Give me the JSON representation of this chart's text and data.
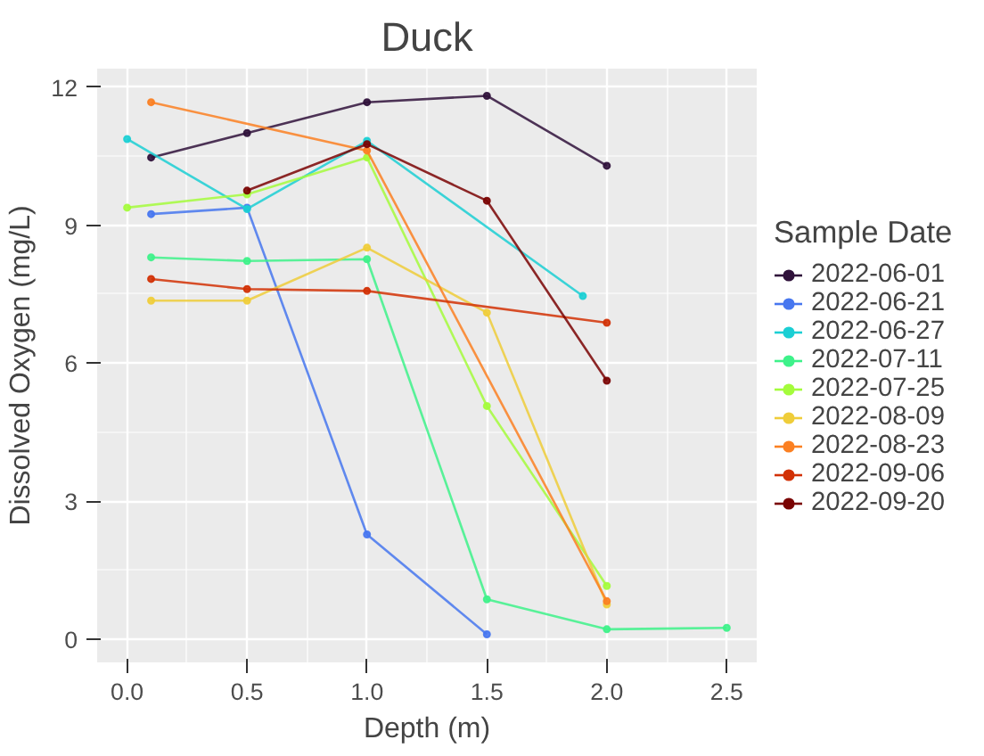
{
  "chart_data": {
    "type": "line",
    "title": "Duck",
    "xlabel": "Depth (m)",
    "ylabel": "Dissolved Oxygen (mg/L)",
    "legend_title": "Sample Date",
    "xlim": [
      -0.125,
      2.625
    ],
    "xticks": [
      {
        "value": 0,
        "label": "0.0"
      },
      0.5,
      {
        "value": 1,
        "label": "1.0"
      },
      1.5,
      {
        "value": 2,
        "label": "2.0"
      },
      2.5
    ],
    "ylim": [
      -0.5,
      12.4
    ],
    "yticks": [
      0,
      3,
      6,
      9,
      12
    ],
    "grid": true,
    "legend": "right",
    "marker": "circle",
    "line_style": "solid",
    "series": [
      {
        "name": "2022-06-01",
        "color": "#30123b",
        "x": [
          0.1,
          0.5,
          1.0,
          1.5,
          2.0
        ],
        "values": [
          10.47,
          11.0,
          11.67,
          11.81,
          10.29
        ]
      },
      {
        "name": "2022-06-21",
        "color": "#4777ef",
        "x": [
          0.1,
          0.5,
          1.0,
          1.5
        ],
        "values": [
          9.24,
          9.38,
          2.28,
          0.11
        ]
      },
      {
        "name": "2022-06-27",
        "color": "#1bcfd4",
        "x": [
          0.0,
          0.5,
          1.0,
          1.9
        ],
        "values": [
          10.87,
          9.35,
          10.83,
          7.46
        ]
      },
      {
        "name": "2022-07-11",
        "color": "#3ef28a",
        "x": [
          0.1,
          0.5,
          1.0,
          1.5,
          2.0,
          2.5
        ],
        "values": [
          8.3,
          8.22,
          8.26,
          0.87,
          0.22,
          0.25
        ]
      },
      {
        "name": "2022-07-25",
        "color": "#a4fc3c",
        "x": [
          0.0,
          0.5,
          1.0,
          1.5,
          2.0
        ],
        "values": [
          9.38,
          9.67,
          10.47,
          5.07,
          1.16
        ]
      },
      {
        "name": "2022-08-09",
        "color": "#efcd3a",
        "x": [
          0.1,
          0.5,
          1.0,
          1.5,
          2.0
        ],
        "values": [
          7.36,
          7.36,
          8.51,
          7.1,
          0.76
        ]
      },
      {
        "name": "2022-08-23",
        "color": "#fb8022",
        "x": [
          0.1,
          1.0,
          2.0
        ],
        "values": [
          11.67,
          10.62,
          0.83
        ]
      },
      {
        "name": "2022-09-06",
        "color": "#d23105",
        "x": [
          0.1,
          0.5,
          1.0,
          2.0
        ],
        "values": [
          7.83,
          7.61,
          7.57,
          6.88
        ]
      },
      {
        "name": "2022-09-20",
        "color": "#7a0403",
        "x": [
          0.5,
          1.0,
          1.5,
          2.0
        ],
        "values": [
          9.75,
          10.76,
          9.53,
          5.62
        ]
      }
    ]
  }
}
